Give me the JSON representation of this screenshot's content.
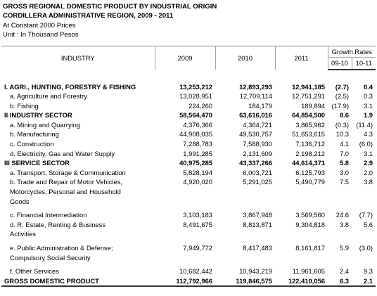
{
  "header": {
    "title_line1": "GROSS REGIONAL DOMESTIC PRODUCT BY INDUSTRIAL ORIGIN",
    "title_line2": "CORDILLERA ADMINISTRATIVE REGION, 2009 - 2011",
    "subtitle": "At Constant 2000 Prices",
    "unit": "Unit : In Thousand Pesos"
  },
  "table": {
    "col_industry": "INDUSTRY",
    "col_2009": "2009",
    "col_2010": "2010",
    "col_2011": "2011",
    "col_growth": "Growth Rates",
    "col_0910": "09-10",
    "col_1011": "10-11",
    "rows": [
      {
        "label": "I. AGRI., HUNTING, FORESTRY & FISHING",
        "v2009": "13,253,212",
        "v2010": "12,893,293",
        "v2011": "12,941,185",
        "g1": "(2.7)",
        "g2": "0.4"
      },
      {
        "label": "a. Agriculture and Forestry",
        "v2009": "13,028,951",
        "v2010": "12,709,114",
        "v2011": "12,751,291",
        "g1": "(2.5)",
        "g2": "0.3"
      },
      {
        "label": "b. Fishing",
        "v2009": "224,260",
        "v2010": "184,179",
        "v2011": "189,894",
        "g1": "(17.9)",
        "g2": "3.1"
      },
      {
        "label": "II INDUSTRY SECTOR",
        "v2009": "58,564,470",
        "v2010": "63,616,016",
        "v2011": "64,854,500",
        "g1": "8.6",
        "g2": "1.9"
      },
      {
        "label": "a. Mining and Quarrying",
        "v2009": "4,376,366",
        "v2010": "4,364,721",
        "v2011": "3,865,962",
        "g1": "(0.3)",
        "g2": "(11.4)"
      },
      {
        "label": "b. Manufacturing",
        "v2009": "44,908,035",
        "v2010": "49,530,757",
        "v2011": "51,653,615",
        "g1": "10.3",
        "g2": "4.3"
      },
      {
        "label": "c. Construction",
        "v2009": "7,288,783",
        "v2010": "7,588,930",
        "v2011": "7,136,712",
        "g1": "4.1",
        "g2": "(6.0)"
      },
      {
        "label": "d. Electricity, Gas and Water Supply",
        "v2009": "1,991,285",
        "v2010": "2,131,609",
        "v2011": "2,198,212",
        "g1": "7.0",
        "g2": "3.1"
      },
      {
        "label": "III SERVICE SECTOR",
        "v2009": "40,975,285",
        "v2010": "43,337,266",
        "v2011": "44,614,371",
        "g1": "5.8",
        "g2": "2.9"
      },
      {
        "label": "a. Transport, Storage & Communication",
        "v2009": "5,828,194",
        "v2010": "6,003,721",
        "v2011": "6,125,793",
        "g1": "3.0",
        "g2": "2.0"
      },
      {
        "label_lines": [
          "b. Trade and Repair of Motor Vehicles,",
          "Motorcycles, Personal and Household",
          "Goods"
        ],
        "v2009": "4,920,020",
        "v2010": "5,291,025",
        "v2011": "5,490,779",
        "g1": "7.5",
        "g2": "3.8"
      },
      {
        "label": "c. Financial Intermediation",
        "v2009": "3,103,183",
        "v2010": "3,867,948",
        "v2011": "3,569,560",
        "g1": "24.6",
        "g2": "(7.7)"
      },
      {
        "label_lines": [
          "d. R. Estate, Renting & Business",
          "Activities"
        ],
        "v2009": "8,491,675",
        "v2010": "8,813,871",
        "v2011": "9,304,818",
        "g1": "3.8",
        "g2": "5.6"
      },
      {
        "label_lines": [
          "e. Public Administration & Defense;",
          "Compulsory Social Security"
        ],
        "v2009": "7,949,772",
        "v2010": "8,417,483",
        "v2011": "8,161,817",
        "g1": "5.9",
        "g2": "(3.0)"
      },
      {
        "label": "f. Other Services",
        "v2009": "10,682,442",
        "v2010": "10,943,219",
        "v2011": "11,961,605",
        "g1": "2.4",
        "g2": "9.3"
      },
      {
        "label": "GROSS DOMESTIC PRODUCT",
        "v2009": "112,792,966",
        "v2010": "119,846,575",
        "v2011": "122,410,056",
        "g1": "6.3",
        "g2": "2.1"
      }
    ]
  }
}
